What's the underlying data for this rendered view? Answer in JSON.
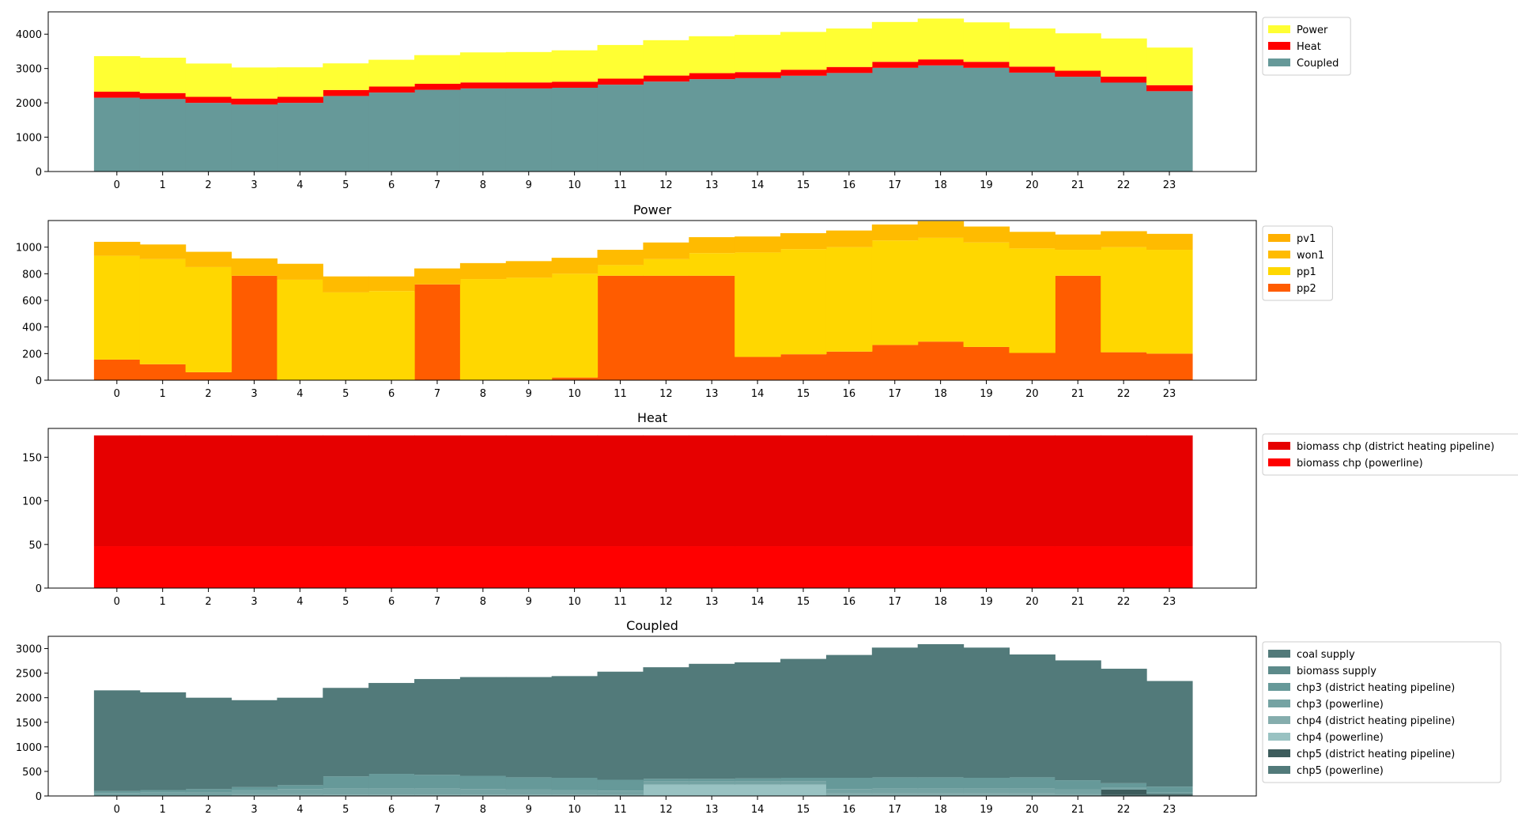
{
  "chart_data": [
    {
      "type": "area",
      "title": "",
      "xlabel": "",
      "ylabel": "",
      "x": [
        0,
        1,
        2,
        3,
        4,
        5,
        6,
        7,
        8,
        9,
        10,
        11,
        12,
        13,
        14,
        15,
        16,
        17,
        18,
        19,
        20,
        21,
        22,
        23
      ],
      "ylim": [
        0,
        4650
      ],
      "yticks": [
        0,
        1000,
        2000,
        3000,
        4000
      ],
      "legend_position": "outside-right-top",
      "series": [
        {
          "name": "Coupled",
          "color": "#669999",
          "values": [
            2150,
            2110,
            2000,
            1950,
            2000,
            2200,
            2300,
            2380,
            2420,
            2420,
            2440,
            2530,
            2620,
            2690,
            2720,
            2790,
            2870,
            3020,
            3090,
            3020,
            2880,
            2760,
            2590,
            2340
          ]
        },
        {
          "name": "Heat",
          "color": "#ff0000",
          "values": [
            175,
            175,
            175,
            175,
            175,
            175,
            175,
            175,
            175,
            175,
            175,
            175,
            175,
            175,
            175,
            175,
            175,
            175,
            175,
            175,
            175,
            175,
            175,
            175
          ]
        },
        {
          "name": "Power",
          "color": "#ffff33",
          "values": [
            1035,
            1030,
            970,
            905,
            860,
            775,
            780,
            835,
            875,
            885,
            915,
            980,
            1030,
            1075,
            1085,
            1100,
            1120,
            1160,
            1190,
            1150,
            1110,
            1090,
            1110,
            1095
          ]
        }
      ]
    },
    {
      "type": "area",
      "title": "Power",
      "xlabel": "",
      "ylabel": "",
      "x": [
        0,
        1,
        2,
        3,
        4,
        5,
        6,
        7,
        8,
        9,
        10,
        11,
        12,
        13,
        14,
        15,
        16,
        17,
        18,
        19,
        20,
        21,
        22,
        23
      ],
      "ylim": [
        0,
        1200
      ],
      "yticks": [
        0,
        200,
        400,
        600,
        800,
        1000
      ],
      "legend_position": "outside-right-top",
      "series": [
        {
          "name": "pp2",
          "color": "#ff5c00",
          "values": [
            155,
            120,
            60,
            785,
            0,
            0,
            0,
            720,
            0,
            0,
            20,
            785,
            785,
            785,
            175,
            195,
            215,
            265,
            290,
            250,
            205,
            785,
            210,
            200
          ]
        },
        {
          "name": "pp1",
          "color": "#ffd700",
          "values": [
            780,
            790,
            790,
            0,
            755,
            660,
            670,
            0,
            760,
            770,
            780,
            80,
            125,
            170,
            785,
            790,
            785,
            785,
            780,
            785,
            785,
            195,
            790,
            780
          ]
        },
        {
          "name": "won1",
          "color": "#ffbb00",
          "values": [
            105,
            110,
            115,
            130,
            120,
            120,
            110,
            120,
            120,
            125,
            120,
            115,
            125,
            120,
            120,
            120,
            125,
            120,
            125,
            120,
            125,
            115,
            120,
            120
          ]
        },
        {
          "name": "pv1",
          "color": "#ffb000",
          "values": [
            0,
            0,
            0,
            0,
            0,
            0,
            0,
            0,
            0,
            0,
            0,
            0,
            0,
            0,
            0,
            0,
            0,
            0,
            0,
            0,
            0,
            0,
            0,
            0
          ]
        }
      ]
    },
    {
      "type": "area",
      "title": "Heat",
      "xlabel": "",
      "ylabel": "",
      "x": [
        0,
        1,
        2,
        3,
        4,
        5,
        6,
        7,
        8,
        9,
        10,
        11,
        12,
        13,
        14,
        15,
        16,
        17,
        18,
        19,
        20,
        21,
        22,
        23
      ],
      "ylim": [
        0,
        183
      ],
      "yticks": [
        0,
        50,
        100,
        150
      ],
      "legend_position": "outside-right-top",
      "series": [
        {
          "name": "biomass chp (powerline)",
          "color": "#ff0000",
          "values": [
            48,
            48,
            48,
            48,
            48,
            48,
            48,
            48,
            48,
            48,
            48,
            48,
            48,
            48,
            48,
            48,
            48,
            48,
            48,
            48,
            48,
            48,
            48,
            48
          ]
        },
        {
          "name": "biomass chp (district heating pipeline)",
          "color": "#e60000",
          "values": [
            127,
            127,
            127,
            127,
            127,
            127,
            127,
            127,
            127,
            127,
            127,
            127,
            127,
            127,
            127,
            127,
            127,
            127,
            127,
            127,
            127,
            127,
            127,
            127
          ]
        }
      ]
    },
    {
      "type": "area",
      "title": "Coupled",
      "xlabel": "",
      "ylabel": "",
      "x": [
        0,
        1,
        2,
        3,
        4,
        5,
        6,
        7,
        8,
        9,
        10,
        11,
        12,
        13,
        14,
        15,
        16,
        17,
        18,
        19,
        20,
        21,
        22,
        23
      ],
      "ylim": [
        0,
        3250
      ],
      "yticks": [
        0,
        500,
        1000,
        1500,
        2000,
        2500,
        3000
      ],
      "legend_position": "outside-right-top",
      "series": [
        {
          "name": "chp5 (powerline)",
          "color": "#527a7a",
          "values": [
            0,
            0,
            0,
            0,
            0,
            0,
            0,
            0,
            0,
            0,
            0,
            0,
            0,
            0,
            0,
            0,
            0,
            0,
            0,
            0,
            0,
            0,
            20,
            20
          ]
        },
        {
          "name": "chp5 (district heating pipeline)",
          "color": "#3d5c5c",
          "values": [
            0,
            0,
            0,
            0,
            0,
            0,
            0,
            0,
            0,
            0,
            0,
            0,
            0,
            0,
            0,
            0,
            0,
            0,
            0,
            0,
            0,
            0,
            110,
            20
          ]
        },
        {
          "name": "chp4 (powerline)",
          "color": "#99c2c2",
          "values": [
            0,
            0,
            0,
            0,
            0,
            0,
            0,
            0,
            0,
            0,
            0,
            0,
            230,
            230,
            230,
            230,
            0,
            0,
            0,
            0,
            0,
            0,
            0,
            0
          ]
        },
        {
          "name": "chp4 (district heating pipeline)",
          "color": "#85adad",
          "values": [
            0,
            0,
            0,
            40,
            40,
            30,
            30,
            30,
            30,
            30,
            30,
            20,
            0,
            0,
            0,
            0,
            50,
            50,
            50,
            50,
            50,
            40,
            0,
            0
          ]
        },
        {
          "name": "chp3 (powerline)",
          "color": "#75a3a3",
          "values": [
            60,
            70,
            80,
            80,
            100,
            120,
            130,
            120,
            110,
            100,
            90,
            90,
            70,
            70,
            70,
            70,
            90,
            100,
            110,
            110,
            110,
            90,
            40,
            40
          ]
        },
        {
          "name": "chp3 (district heating pipeline)",
          "color": "#669999",
          "values": [
            40,
            50,
            60,
            60,
            80,
            250,
            290,
            280,
            270,
            250,
            250,
            220,
            50,
            50,
            60,
            70,
            230,
            230,
            220,
            210,
            220,
            190,
            90,
            110
          ]
        },
        {
          "name": "biomass supply",
          "color": "#5c8a8a",
          "values": [
            0,
            0,
            0,
            0,
            0,
            0,
            0,
            0,
            0,
            0,
            0,
            0,
            0,
            0,
            0,
            0,
            0,
            0,
            0,
            0,
            0,
            0,
            0,
            0
          ]
        },
        {
          "name": "coal supply",
          "color": "#527a7a",
          "values": [
            2050,
            1990,
            1860,
            1770,
            1780,
            1800,
            1850,
            1950,
            2010,
            2040,
            2070,
            2200,
            2270,
            2340,
            2360,
            2420,
            2500,
            2640,
            2710,
            2650,
            2500,
            2440,
            2330,
            2150
          ]
        }
      ]
    }
  ]
}
